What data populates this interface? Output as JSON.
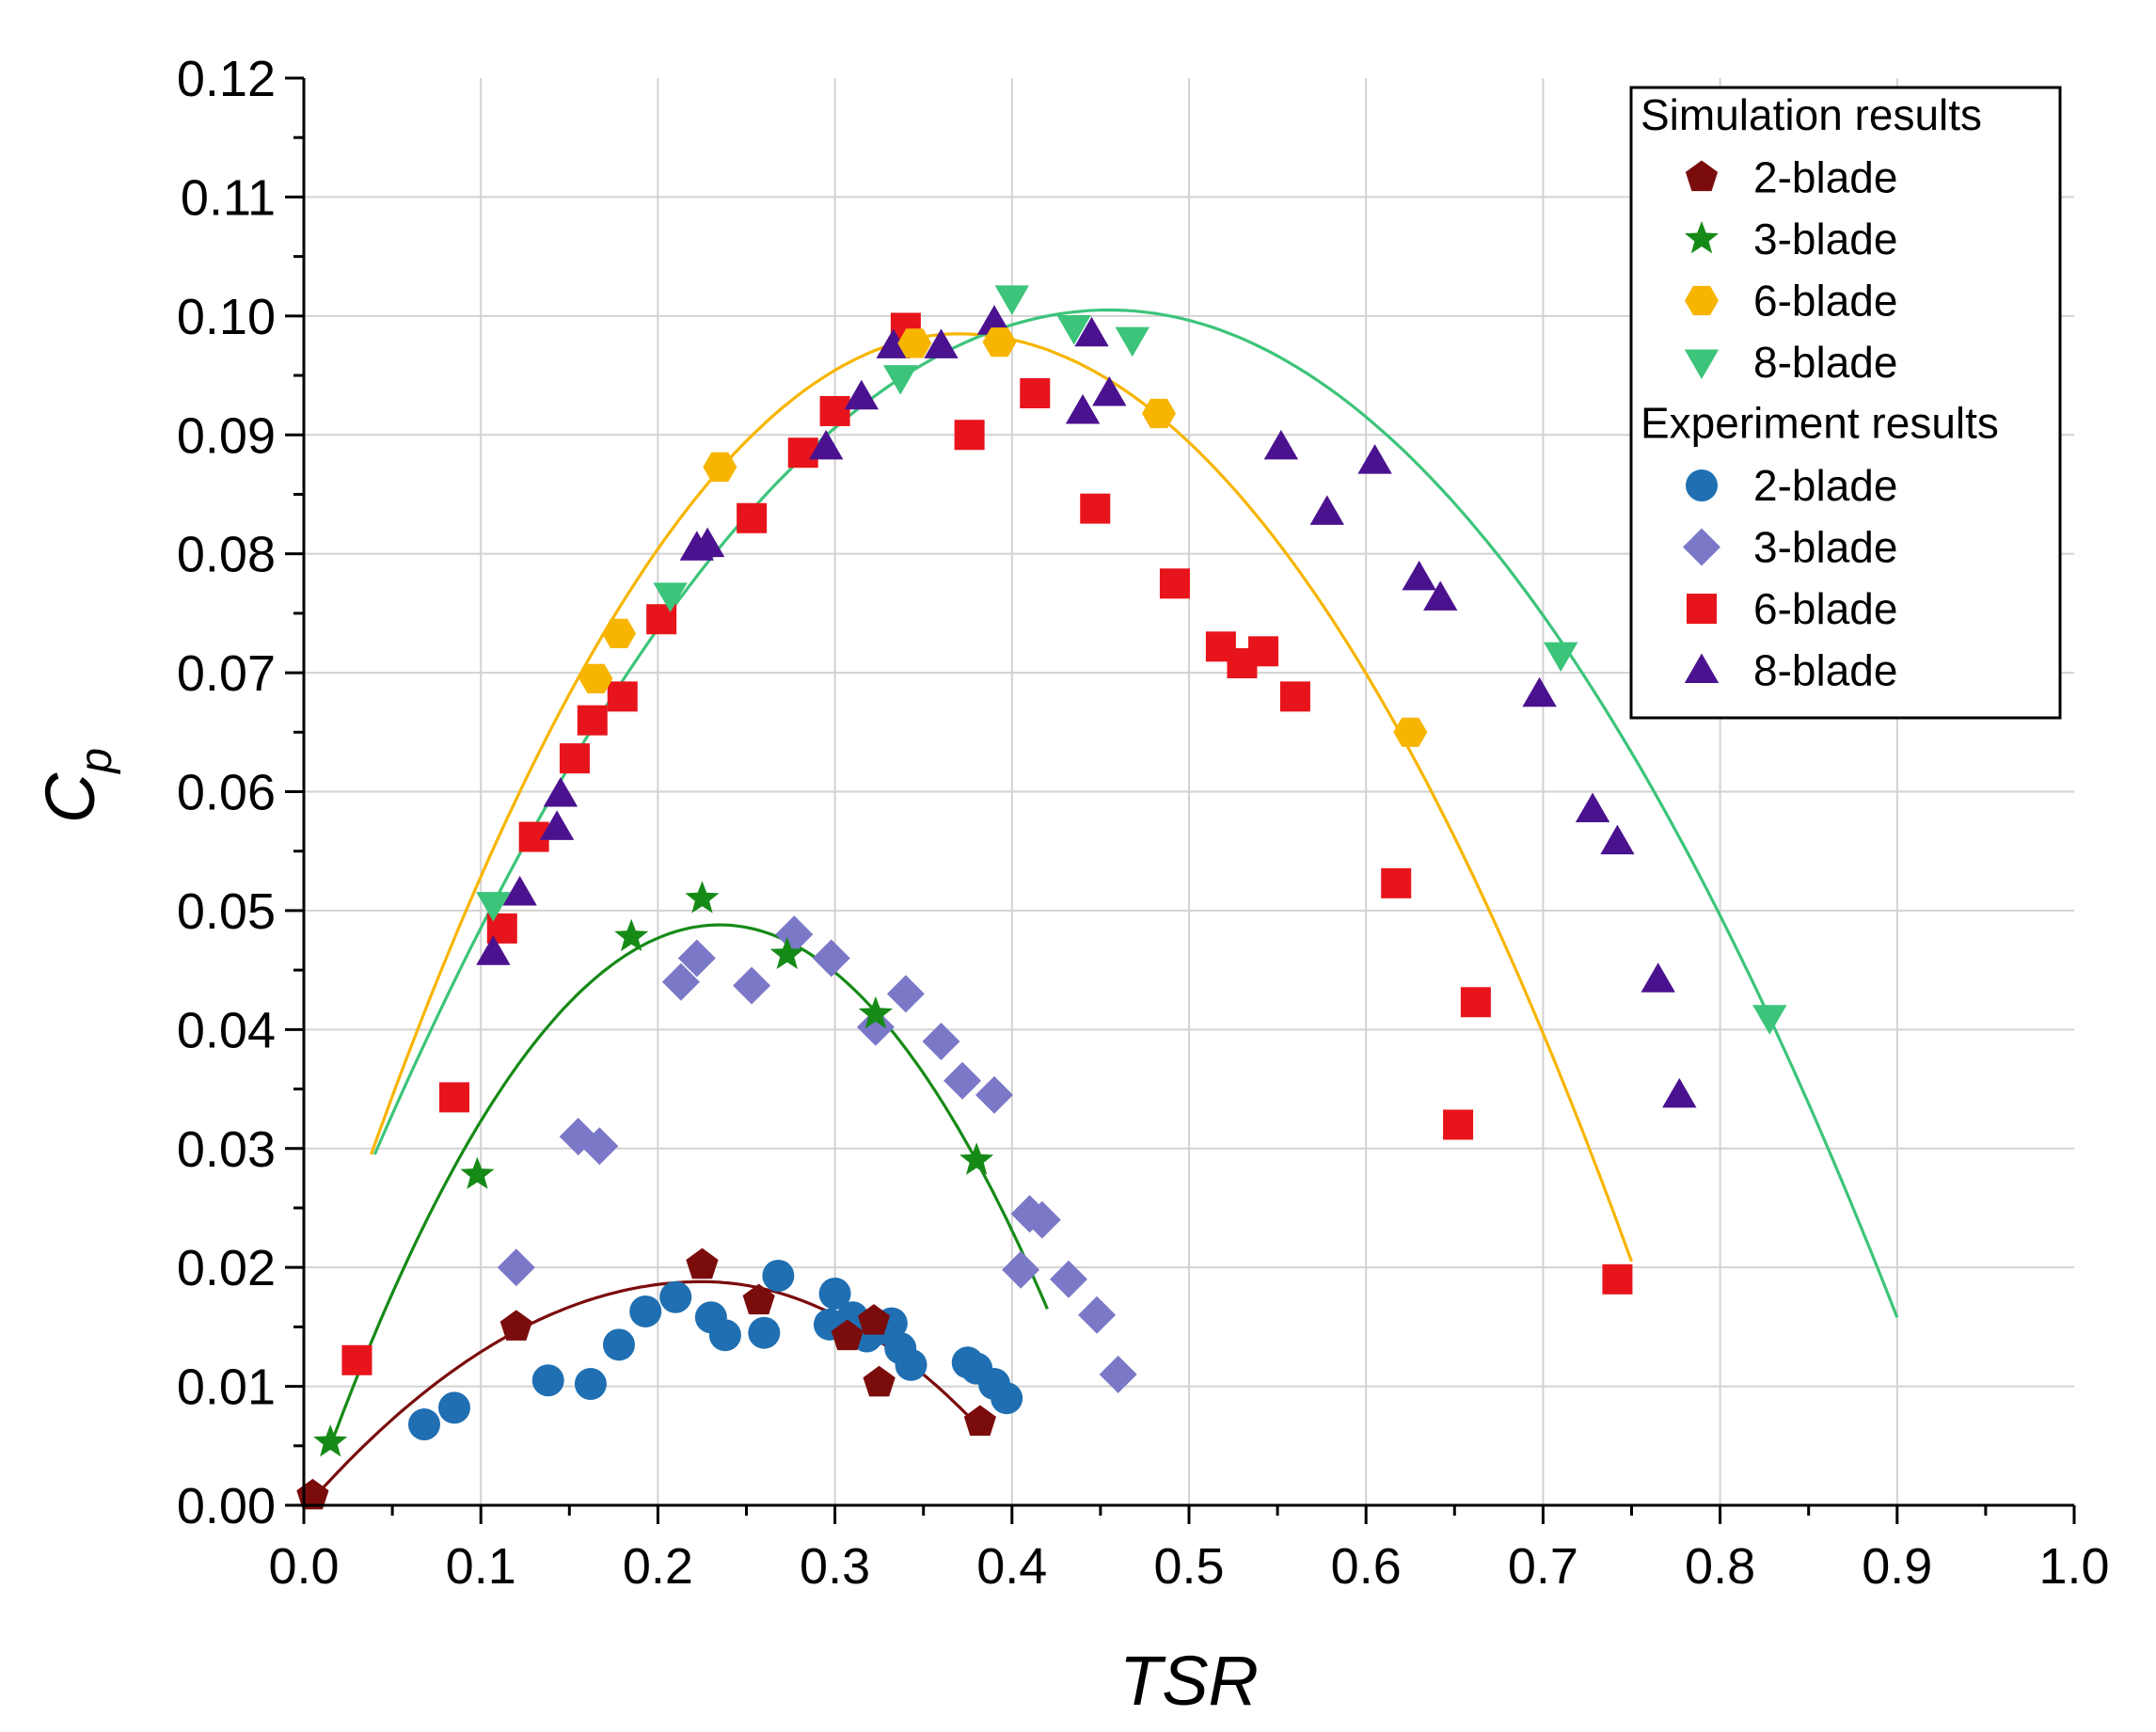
{
  "chart_data": {
    "type": "scatter",
    "title": "",
    "xlabel": "TSR",
    "ylabel_main": "C",
    "ylabel_sub": "p",
    "xlim": [
      0.0,
      1.0
    ],
    "ylim": [
      0.0,
      0.12
    ],
    "xticks": [
      "0.0",
      "0.1",
      "0.2",
      "0.3",
      "0.4",
      "0.5",
      "0.6",
      "0.7",
      "0.8",
      "0.9",
      "1.0"
    ],
    "yticks": [
      "0.00",
      "0.01",
      "0.02",
      "0.03",
      "0.04",
      "0.05",
      "0.06",
      "0.07",
      "0.08",
      "0.09",
      "0.10",
      "0.11",
      "0.12"
    ],
    "grid": true,
    "legend_position": "top-right",
    "legend": {
      "sim_header": "Simulation results",
      "exp_header": "Experiment results"
    },
    "series": [
      {
        "group": "Simulation results",
        "name": "2-blade",
        "marker": "pentagon",
        "color": "#7b0c0c",
        "points": [
          [
            0.005,
            0.0008
          ],
          [
            0.12,
            0.015
          ],
          [
            0.225,
            0.0202
          ],
          [
            0.257,
            0.0172
          ],
          [
            0.307,
            0.0142
          ],
          [
            0.322,
            0.0155
          ],
          [
            0.325,
            0.0103
          ],
          [
            0.382,
            0.007
          ]
        ]
      },
      {
        "group": "Simulation results",
        "name": "3-blade",
        "marker": "star",
        "color": "#168a16",
        "points": [
          [
            0.015,
            0.0053
          ],
          [
            0.098,
            0.0278
          ],
          [
            0.185,
            0.0478
          ],
          [
            0.225,
            0.051
          ],
          [
            0.273,
            0.0463
          ],
          [
            0.323,
            0.0413
          ],
          [
            0.38,
            0.029
          ]
        ]
      },
      {
        "group": "Simulation results",
        "name": "6-blade",
        "marker": "hexagon",
        "color": "#f7b500",
        "points": [
          [
            0.165,
            0.0695
          ],
          [
            0.178,
            0.0733
          ],
          [
            0.235,
            0.0873
          ],
          [
            0.345,
            0.0977
          ],
          [
            0.393,
            0.0978
          ],
          [
            0.483,
            0.0918
          ],
          [
            0.625,
            0.065
          ]
        ]
      },
      {
        "group": "Simulation results",
        "name": "8-blade",
        "marker": "triangle-down",
        "color": "#3cc47a",
        "points": [
          [
            0.107,
            0.0505
          ],
          [
            0.207,
            0.0765
          ],
          [
            0.337,
            0.0948
          ],
          [
            0.4,
            0.1015
          ],
          [
            0.435,
            0.099
          ],
          [
            0.468,
            0.098
          ],
          [
            0.71,
            0.0715
          ],
          [
            0.828,
            0.041
          ]
        ]
      },
      {
        "group": "Experiment results",
        "name": "2-blade",
        "marker": "circle",
        "color": "#1f6fb2",
        "points": [
          [
            0.068,
            0.0068
          ],
          [
            0.085,
            0.0082
          ],
          [
            0.138,
            0.0105
          ],
          [
            0.162,
            0.0102
          ],
          [
            0.178,
            0.0135
          ],
          [
            0.193,
            0.0163
          ],
          [
            0.21,
            0.0175
          ],
          [
            0.23,
            0.0158
          ],
          [
            0.238,
            0.0143
          ],
          [
            0.26,
            0.0145
          ],
          [
            0.268,
            0.0193
          ],
          [
            0.297,
            0.0152
          ],
          [
            0.3,
            0.0178
          ],
          [
            0.31,
            0.0158
          ],
          [
            0.318,
            0.0142
          ],
          [
            0.325,
            0.0148
          ],
          [
            0.332,
            0.0153
          ],
          [
            0.337,
            0.0132
          ],
          [
            0.343,
            0.0118
          ],
          [
            0.375,
            0.012
          ],
          [
            0.38,
            0.0115
          ],
          [
            0.39,
            0.0102
          ],
          [
            0.397,
            0.009
          ]
        ]
      },
      {
        "group": "Experiment results",
        "name": "3-blade",
        "marker": "diamond",
        "color": "#7b78c8",
        "points": [
          [
            0.12,
            0.02
          ],
          [
            0.155,
            0.031
          ],
          [
            0.167,
            0.0302
          ],
          [
            0.213,
            0.044
          ],
          [
            0.222,
            0.046
          ],
          [
            0.253,
            0.0437
          ],
          [
            0.277,
            0.048
          ],
          [
            0.298,
            0.046
          ],
          [
            0.323,
            0.0402
          ],
          [
            0.34,
            0.043
          ],
          [
            0.36,
            0.039
          ],
          [
            0.372,
            0.0357
          ],
          [
            0.39,
            0.0345
          ],
          [
            0.405,
            0.0198
          ],
          [
            0.41,
            0.0245
          ],
          [
            0.417,
            0.024
          ],
          [
            0.432,
            0.019
          ],
          [
            0.448,
            0.016
          ],
          [
            0.46,
            0.011
          ]
        ]
      },
      {
        "group": "Experiment results",
        "name": "6-blade",
        "marker": "square",
        "color": "#e8141c",
        "points": [
          [
            0.03,
            0.0122
          ],
          [
            0.085,
            0.0343
          ],
          [
            0.112,
            0.0485
          ],
          [
            0.13,
            0.0562
          ],
          [
            0.153,
            0.0628
          ],
          [
            0.163,
            0.066
          ],
          [
            0.18,
            0.068
          ],
          [
            0.202,
            0.0745
          ],
          [
            0.253,
            0.083
          ],
          [
            0.282,
            0.0885
          ],
          [
            0.3,
            0.092
          ],
          [
            0.34,
            0.099
          ],
          [
            0.376,
            0.09
          ],
          [
            0.413,
            0.0935
          ],
          [
            0.447,
            0.0838
          ],
          [
            0.492,
            0.0775
          ],
          [
            0.518,
            0.0722
          ],
          [
            0.53,
            0.0708
          ],
          [
            0.542,
            0.0718
          ],
          [
            0.56,
            0.068
          ],
          [
            0.617,
            0.0523
          ],
          [
            0.652,
            0.032
          ],
          [
            0.662,
            0.0423
          ],
          [
            0.742,
            0.019
          ]
        ]
      },
      {
        "group": "Experiment results",
        "name": "8-blade",
        "marker": "triangle-up",
        "color": "#4b128f",
        "points": [
          [
            0.107,
            0.0465
          ],
          [
            0.122,
            0.0515
          ],
          [
            0.143,
            0.057
          ],
          [
            0.145,
            0.0598
          ],
          [
            0.222,
            0.0805
          ],
          [
            0.228,
            0.0808
          ],
          [
            0.315,
            0.0932
          ],
          [
            0.295,
            0.089
          ],
          [
            0.333,
            0.0975
          ],
          [
            0.36,
            0.0975
          ],
          [
            0.39,
            0.0995
          ],
          [
            0.44,
            0.092
          ],
          [
            0.445,
            0.0985
          ],
          [
            0.455,
            0.0935
          ],
          [
            0.552,
            0.089
          ],
          [
            0.578,
            0.0835
          ],
          [
            0.605,
            0.0878
          ],
          [
            0.63,
            0.078
          ],
          [
            0.642,
            0.0763
          ],
          [
            0.698,
            0.0682
          ],
          [
            0.728,
            0.0585
          ],
          [
            0.742,
            0.0558
          ],
          [
            0.765,
            0.0442
          ],
          [
            0.777,
            0.0345
          ]
        ]
      }
    ],
    "fit_curves": [
      {
        "name": "2-blade fit",
        "color": "#7b0c0c",
        "x_range": [
          0.005,
          0.38
        ],
        "vertex": [
          0.225,
          0.0188
        ],
        "ends": [
          [
            0.005,
            0.0005
          ],
          [
            0.38,
            0.0068
          ]
        ]
      },
      {
        "name": "3-blade fit",
        "color": "#168a16",
        "x_range": [
          0.015,
          0.42
        ],
        "vertex": [
          0.235,
          0.0488
        ],
        "ends": [
          [
            0.015,
            0.005
          ],
          [
            0.42,
            0.0165
          ]
        ]
      },
      {
        "name": "6-blade fit",
        "color": "#f7b500",
        "x_range": [
          0.038,
          0.75
        ],
        "vertex": [
          0.37,
          0.0985
        ],
        "ends": [
          [
            0.038,
            0.0295
          ],
          [
            0.75,
            0.0205
          ]
        ]
      },
      {
        "name": "8-blade fit",
        "color": "#3cc47a",
        "x_range": [
          0.04,
          0.9
        ],
        "vertex": [
          0.455,
          0.1005
        ],
        "ends": [
          [
            0.04,
            0.0295
          ],
          [
            0.9,
            0.0158
          ]
        ]
      }
    ]
  }
}
